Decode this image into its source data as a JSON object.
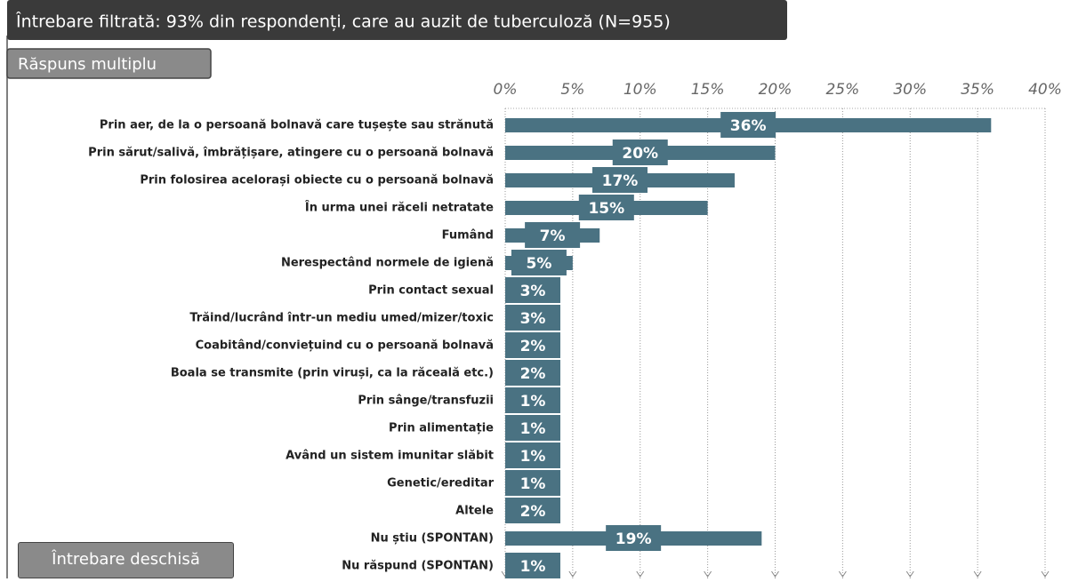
{
  "chart_data": {
    "type": "bar",
    "orientation": "horizontal",
    "title": "Întrebare filtrată: 93% din respondenți, care au auzit de tuberculoză (N=955)",
    "subtitle": "Răspuns multiplu",
    "annotation": "Întrebare deschisă",
    "color": "#4a7282",
    "categories": [
      "Prin aer, de la o persoană bolnavă care tușește sau strănută",
      "Prin sărut/salivă, îmbrățișare, atingere cu o persoană bolnavă",
      "Prin folosirea acelorași obiecte cu o persoană bolnavă",
      "În urma unei răceli netratate",
      "Fumând",
      "Nerespectând normele de igienă",
      "Prin contact sexual",
      "Trăind/lucrând într-un mediu umed/mizer/toxic",
      "Coabitând/conviețuind cu o persoană bolnavă",
      "Boala se transmite (prin viruși, ca la răceală etc.)",
      "Prin sânge/transfuzii",
      "Prin alimentație",
      "Având un sistem imunitar slăbit",
      "Genetic/ereditar",
      "Altele",
      "Nu știu (SPONTAN)",
      "Nu răspund (SPONTAN)"
    ],
    "values": [
      36,
      20,
      17,
      15,
      7,
      5,
      3,
      3,
      2,
      2,
      1,
      1,
      1,
      1,
      2,
      19,
      1
    ],
    "value_labels": [
      "36%",
      "20%",
      "17%",
      "15%",
      "7%",
      "5%",
      "3%",
      "3%",
      "2%",
      "2%",
      "1%",
      "1%",
      "1%",
      "1%",
      "2%",
      "19%",
      "1%"
    ],
    "xlim": [
      0,
      40
    ],
    "xticks": [
      {
        "value": 0,
        "label": "0%"
      },
      {
        "value": 5,
        "label": "5%"
      },
      {
        "value": 10,
        "label": "10%"
      },
      {
        "value": 15,
        "label": "15%"
      },
      {
        "value": 20,
        "label": "20%"
      },
      {
        "value": 25,
        "label": "25%"
      },
      {
        "value": 30,
        "label": "30%"
      },
      {
        "value": 35,
        "label": "35%"
      },
      {
        "value": 40,
        "label": "40%"
      }
    ],
    "grid": true
  }
}
